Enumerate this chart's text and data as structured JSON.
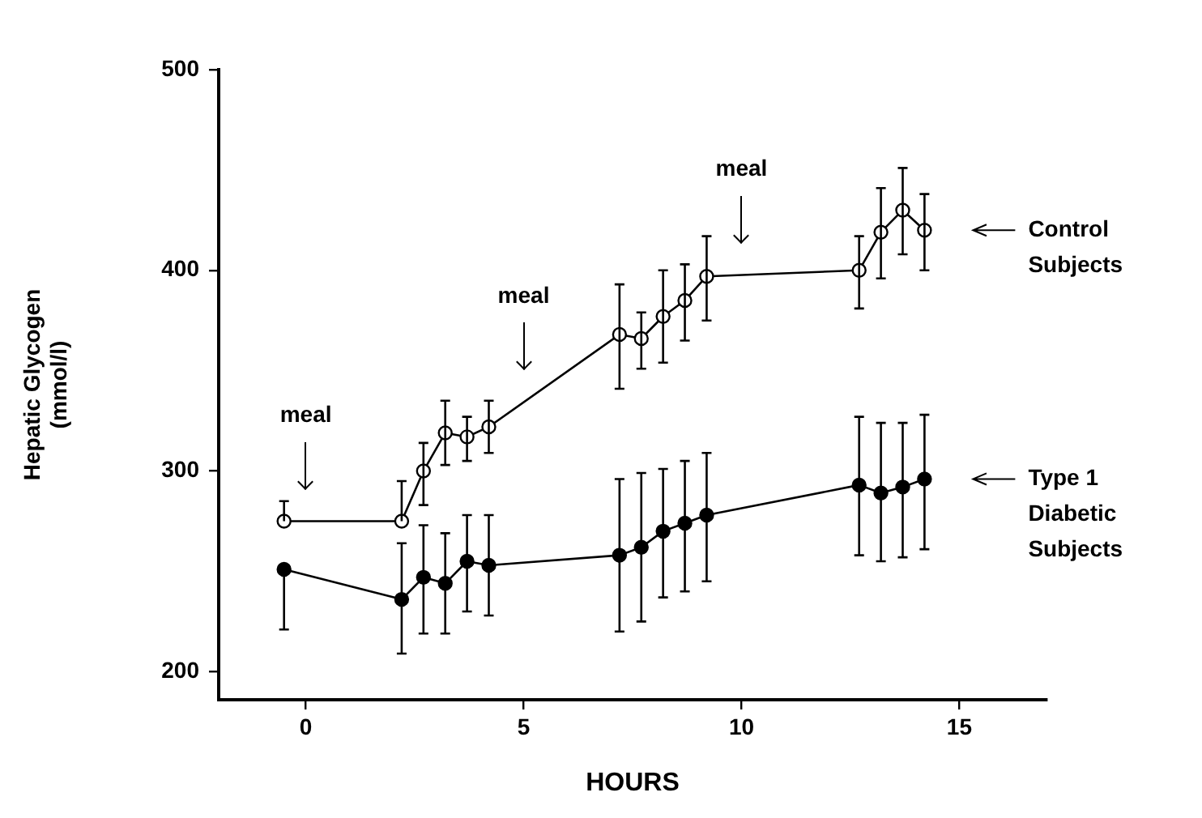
{
  "chart_data": {
    "type": "line",
    "xlabel": "HOURS",
    "ylabel": "Hepatic Glycogen\n(mmol/l)",
    "x": [
      -0.5,
      2.2,
      2.7,
      3.2,
      3.7,
      4.2,
      7.2,
      7.7,
      8.2,
      8.7,
      9.2,
      12.7,
      13.2,
      13.7,
      14.2
    ],
    "series": [
      {
        "name": "Control Subjects",
        "color": "#000000",
        "colors": [
          "#ffffff",
          "#ffffff",
          "#ffffff",
          "#ffffff",
          "#ffffff",
          "#ffffff",
          "#ffffff",
          "#ffffff",
          "#ffffff",
          "#ffffff",
          "#ffffff",
          "#ffffff",
          "#ffffff",
          "#ffffff",
          "#ffffff"
        ],
        "values": [
          275,
          275,
          300,
          319,
          317,
          322,
          368,
          366,
          377,
          385,
          397,
          400,
          419,
          430,
          420
        ],
        "errors": [
          [
            275,
            285
          ],
          [
            275,
            295
          ],
          [
            283,
            314
          ],
          [
            303,
            335
          ],
          [
            305,
            327
          ],
          [
            309,
            335
          ],
          [
            341,
            393
          ],
          [
            351,
            379
          ],
          [
            354,
            400
          ],
          [
            365,
            403
          ],
          [
            375,
            417
          ],
          [
            381,
            417
          ],
          [
            396,
            441
          ],
          [
            408,
            451
          ],
          [
            400,
            438
          ]
        ]
      },
      {
        "name": "Type 1 Diabetic Subjects",
        "color": "#000000",
        "values": [
          251,
          236,
          247,
          244,
          255,
          253,
          258,
          262,
          270,
          274,
          278,
          293,
          289,
          292,
          296
        ],
        "errors": [
          [
            221,
            251
          ],
          [
            209,
            264
          ],
          [
            219,
            273
          ],
          [
            219,
            269
          ],
          [
            230,
            278
          ],
          [
            228,
            278
          ],
          [
            220,
            296
          ],
          [
            225,
            299
          ],
          [
            237,
            301
          ],
          [
            240,
            305
          ],
          [
            245,
            309
          ],
          [
            258,
            327
          ],
          [
            255,
            324
          ],
          [
            257,
            324
          ],
          [
            261,
            328
          ]
        ]
      }
    ],
    "ref_lines": [
      {
        "axis": "x",
        "value": 0,
        "label": "meal"
      },
      {
        "axis": "x",
        "value": 5,
        "label": "meal"
      },
      {
        "axis": "x",
        "value": 10,
        "label": "meal"
      }
    ],
    "xlim": [
      -2,
      17
    ],
    "xticks": [
      0,
      5,
      10,
      15
    ],
    "ylim": [
      186,
      500
    ],
    "yticks": [
      200,
      300,
      400,
      500
    ],
    "grid": false,
    "legend": "right",
    "marker": "circle",
    "line_style": "solid"
  }
}
